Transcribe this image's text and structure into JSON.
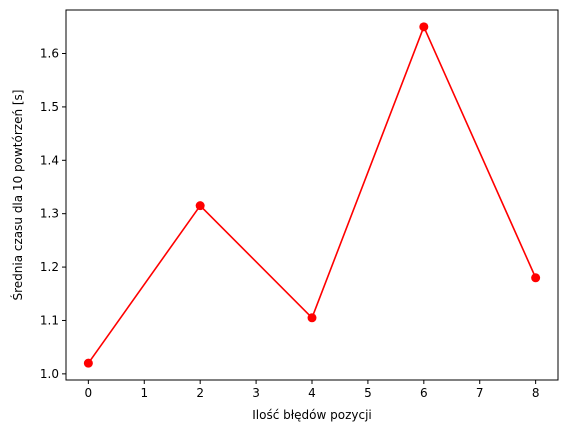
{
  "chart_data": {
    "type": "line",
    "x": [
      0,
      2,
      4,
      6,
      8
    ],
    "series": [
      {
        "values": [
          1.02,
          1.315,
          1.105,
          1.65,
          1.18
        ],
        "color": "#ff0000",
        "marker": "circle"
      }
    ],
    "xlabel": "Ilość błędów pozycji",
    "ylabel": "Średnia czasu dla 10 powtórzeń [s]",
    "xlim": [
      -0.4,
      8.4
    ],
    "ylim": [
      0.9885,
      1.6815
    ],
    "xticks": [
      0,
      1,
      2,
      3,
      4,
      5,
      6,
      7,
      8
    ],
    "xtick_labels": [
      "0",
      "1",
      "2",
      "3",
      "4",
      "5",
      "6",
      "7",
      "8"
    ],
    "yticks": [
      1.0,
      1.1,
      1.2,
      1.3,
      1.4,
      1.5,
      1.6
    ],
    "ytick_labels": [
      "1.0",
      "1.1",
      "1.2",
      "1.3",
      "1.4",
      "1.5",
      "1.6"
    ],
    "grid": false,
    "legend": false
  }
}
